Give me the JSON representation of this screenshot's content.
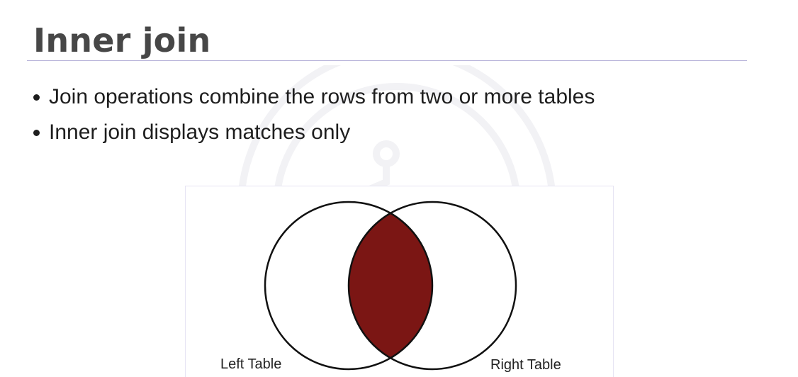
{
  "slide": {
    "title": "Inner join",
    "bullets": [
      "Join operations combine the rows from two or more tables",
      "Inner join displays matches only"
    ]
  },
  "venn": {
    "left_label": "Left Table",
    "right_label": "Right Table",
    "intersection_color": "#7b1614",
    "outline_color": "#111111"
  }
}
